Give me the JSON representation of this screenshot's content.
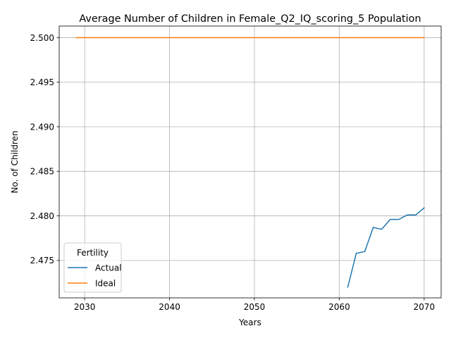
{
  "chart_data": {
    "type": "line",
    "title": "Average Number of Children in Female_Q2_IQ_scoring_5 Population",
    "xlabel": "Years",
    "ylabel": "No. of Children",
    "xlim": [
      2027,
      2072
    ],
    "ylim": [
      2.4708,
      2.5013
    ],
    "x_ticks": [
      2030,
      2040,
      2050,
      2060,
      2070
    ],
    "y_ticks": [
      2.475,
      2.48,
      2.485,
      2.49,
      2.495,
      2.5
    ],
    "y_tick_labels": [
      "2.475",
      "2.480",
      "2.485",
      "2.490",
      "2.495",
      "2.500"
    ],
    "grid": true,
    "legend": {
      "title": "Fertility",
      "placement": "lower-left"
    },
    "series": [
      {
        "name": "Actual",
        "color": "#1f77b4",
        "x": [
          2061,
          2062,
          2063,
          2064,
          2065,
          2066,
          2067,
          2068,
          2069,
          2070
        ],
        "y": [
          2.472,
          2.4758,
          2.476,
          2.4787,
          2.4785,
          2.4796,
          2.4796,
          2.4801,
          2.4801,
          2.4809
        ]
      },
      {
        "name": "Ideal",
        "color": "#ff7f0e",
        "x": [
          2029,
          2070
        ],
        "y": [
          2.5,
          2.5
        ]
      }
    ]
  }
}
